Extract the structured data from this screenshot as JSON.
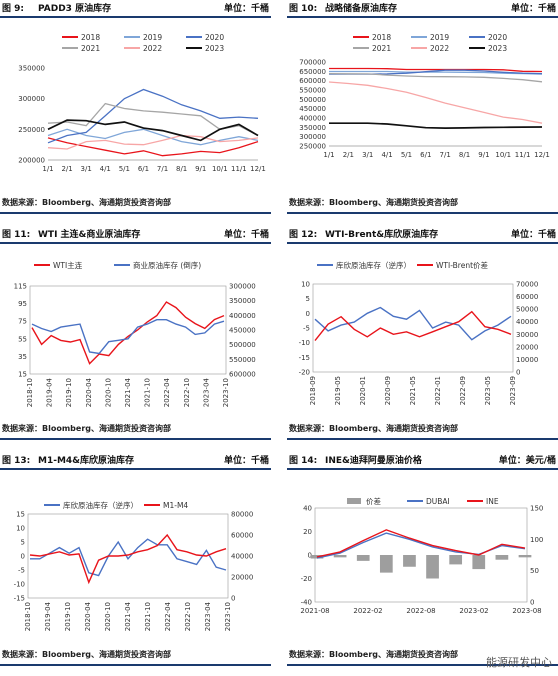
{
  "source_text": "数据来源：Bloomberg、海通期货投资咨询部",
  "watermark": "能源研发中心",
  "panels": [
    {
      "fig": "图 9:",
      "title": "PADD3 原油库存",
      "unit": "单位：千桶"
    },
    {
      "fig": "图 10:",
      "title": "战略储备原油库存",
      "unit": "单位：千桶"
    },
    {
      "fig": "图 11:",
      "title": "WTI 主连&商业原油库存",
      "unit": "单位：千桶"
    },
    {
      "fig": "图 12:",
      "title": "WTI-Brent&库欣原油库存",
      "unit": "单位：千桶"
    },
    {
      "fig": "图 13:",
      "title": "M1-M4&库欣原油库存",
      "unit": "单位：千桶"
    },
    {
      "fig": "图 14:",
      "title": "INE&迪拜阿曼原油价格",
      "unit": "单位：美元/桶"
    }
  ],
  "chart_data": [
    {
      "type": "line",
      "x": [
        "1/1",
        "2/1",
        "3/1",
        "4/1",
        "5/1",
        "6/1",
        "7/1",
        "8/1",
        "9/1",
        "10/1",
        "11/1",
        "12/1"
      ],
      "ylim": [
        200000,
        350000
      ],
      "yticks": [
        "350000",
        "300000",
        "250000",
        "200000"
      ],
      "series": [
        {
          "name": "2018",
          "color": "#e8141b",
          "values": [
            236000,
            228000,
            222000,
            216000,
            210000,
            215000,
            207000,
            210000,
            214000,
            212000,
            220000,
            230000
          ]
        },
        {
          "name": "2019",
          "color": "#7fa6d8",
          "values": [
            240000,
            250000,
            240000,
            235000,
            245000,
            250000,
            240000,
            230000,
            225000,
            232000,
            238000,
            232000
          ]
        },
        {
          "name": "2020",
          "color": "#4a72c4",
          "values": [
            228000,
            240000,
            245000,
            272000,
            300000,
            315000,
            304000,
            290000,
            280000,
            268000,
            270000,
            268000
          ]
        },
        {
          "name": "2021",
          "color": "#a6a6a6",
          "values": [
            260000,
            262000,
            256000,
            292000,
            284000,
            280000,
            278000,
            275000,
            272000,
            250000,
            256000,
            240000
          ]
        },
        {
          "name": "2022",
          "color": "#f7a6a6",
          "values": [
            220000,
            218000,
            230000,
            232000,
            226000,
            225000,
            232000,
            240000,
            238000,
            230000,
            232000,
            236000
          ]
        },
        {
          "name": "2023",
          "color": "#111111",
          "values": [
            250000,
            265000,
            264000,
            258000,
            262000,
            252000,
            248000,
            240000,
            232000,
            250000,
            258000,
            240000
          ]
        }
      ]
    },
    {
      "type": "line",
      "x": [
        "1/1",
        "2/1",
        "3/1",
        "4/1",
        "5/1",
        "6/1",
        "7/1",
        "8/1",
        "9/1",
        "10/1",
        "11/1",
        "12/1"
      ],
      "ylim": [
        250000,
        700000
      ],
      "yticks": [
        "700000",
        "650000",
        "600000",
        "550000",
        "500000",
        "450000",
        "400000",
        "350000",
        "300000",
        "250000"
      ],
      "series": [
        {
          "name": "2018",
          "color": "#e8141b",
          "values": [
            665000,
            665000,
            665000,
            664000,
            660000,
            660000,
            660000,
            660000,
            660000,
            658000,
            650000,
            649000
          ]
        },
        {
          "name": "2019",
          "color": "#7fa6d8",
          "values": [
            649000,
            649000,
            649000,
            649000,
            646000,
            646000,
            646000,
            645000,
            644000,
            640000,
            638000,
            635000
          ]
        },
        {
          "name": "2020",
          "color": "#4a72c4",
          "values": [
            635000,
            635000,
            635000,
            636000,
            640000,
            648000,
            656000,
            656000,
            652000,
            645000,
            640000,
            638000
          ]
        },
        {
          "name": "2021",
          "color": "#a6a6a6",
          "values": [
            638000,
            637000,
            636000,
            630000,
            625000,
            622000,
            621000,
            620000,
            618000,
            612000,
            605000,
            594000
          ]
        },
        {
          "name": "2022",
          "color": "#f7a6a6",
          "values": [
            593000,
            585000,
            575000,
            558000,
            538000,
            510000,
            480000,
            455000,
            430000,
            405000,
            392000,
            372000
          ]
        },
        {
          "name": "2023",
          "color": "#111111",
          "values": [
            372000,
            372000,
            372000,
            368000,
            358000,
            348000,
            346000,
            347000,
            349000,
            350000,
            351000,
            352000
          ]
        }
      ]
    },
    {
      "type": "line",
      "x": [
        "2018-10",
        "2019-01",
        "2019-04",
        "2019-07",
        "2019-10",
        "2020-01",
        "2020-04",
        "2020-07",
        "2020-10",
        "2021-01",
        "2021-04",
        "2021-07",
        "2021-10",
        "2022-01",
        "2022-04",
        "2022-07",
        "2022-10",
        "2023-01",
        "2023-04",
        "2023-07",
        "2023-10"
      ],
      "xticks": [
        "2018-10",
        "2019-04",
        "2019-10",
        "2020-04",
        "2020-10",
        "2021-04",
        "2021-10",
        "2022-04",
        "2022-10",
        "2023-04",
        "2023-10"
      ],
      "ylim_left": [
        15,
        125
      ],
      "yticks_left": [
        "115",
        "95",
        "75",
        "55",
        "35",
        "15"
      ],
      "yticks_right": [
        "300000",
        "350000",
        "400000",
        "450000",
        "500000",
        "550000",
        "600000"
      ],
      "series": [
        {
          "name": "WTI主连",
          "color": "#e8141b",
          "axis": "left",
          "values": [
            73,
            52,
            63,
            57,
            55,
            58,
            28,
            40,
            38,
            52,
            62,
            70,
            80,
            88,
            105,
            98,
            86,
            78,
            72,
            83,
            88
          ]
        },
        {
          "name": "商业原油库存 (倒序)",
          "color": "#4a72c4",
          "axis": "right",
          "values": [
            430000,
            445000,
            455000,
            440000,
            435000,
            430000,
            525000,
            530000,
            490000,
            485000,
            480000,
            440000,
            430000,
            415000,
            415000,
            430000,
            440000,
            465000,
            460000,
            430000,
            420000
          ]
        }
      ]
    },
    {
      "type": "line",
      "x": [
        "2018-09",
        "2019-01",
        "2019-05",
        "2019-09",
        "2020-01",
        "2020-05",
        "2020-09",
        "2021-01",
        "2021-05",
        "2021-09",
        "2022-01",
        "2022-05",
        "2022-09",
        "2023-01",
        "2023-05",
        "2023-09"
      ],
      "xticks": [
        "2018-09",
        "2019-05",
        "2020-01",
        "2020-09",
        "2021-05",
        "2022-01",
        "2022-09",
        "2023-05",
        "2023-09"
      ],
      "ylim_left": [
        -20,
        10
      ],
      "yticks_left": [
        "10",
        "5",
        "0",
        "-5",
        "-10",
        "-15",
        "-20"
      ],
      "yticks_right": [
        "70000",
        "60000",
        "50000",
        "40000",
        "30000",
        "20000",
        "10000",
        "0"
      ],
      "series": [
        {
          "name": "库欣原油库存（逆序）",
          "color": "#4a72c4",
          "axis": "left",
          "values": [
            -2,
            -6,
            -4,
            -3,
            0,
            2,
            -1,
            -2,
            1,
            -5,
            -3,
            -4,
            -9,
            -6,
            -4,
            -1
          ]
        },
        {
          "name": "WTI-Brent价差",
          "color": "#e8141b",
          "axis": "right",
          "values": [
            25000,
            38000,
            44000,
            34000,
            28000,
            35000,
            30000,
            32000,
            28000,
            32000,
            36000,
            40000,
            48000,
            36000,
            34000,
            30000
          ]
        }
      ]
    },
    {
      "type": "line",
      "x": [
        "2018-10",
        "2019-01",
        "2019-04",
        "2019-07",
        "2019-10",
        "2020-01",
        "2020-04",
        "2020-07",
        "2020-10",
        "2021-01",
        "2021-04",
        "2021-07",
        "2021-10",
        "2022-01",
        "2022-04",
        "2022-07",
        "2022-10",
        "2023-01",
        "2023-04",
        "2023-07",
        "2023-10"
      ],
      "xticks": [
        "2018-10",
        "2019-04",
        "2019-10",
        "2020-04",
        "2020-10",
        "2021-04",
        "2021-10",
        "2022-04",
        "2022-10",
        "2023-04",
        "2023-10"
      ],
      "ylim_left": [
        -15,
        15
      ],
      "yticks_left": [
        "15",
        "10",
        "5",
        "0",
        "-5",
        "-10",
        "-15"
      ],
      "yticks_right": [
        "80000",
        "60000",
        "40000",
        "20000",
        "0"
      ],
      "series": [
        {
          "name": "库欣原油库存（逆序）",
          "color": "#4a72c4",
          "axis": "left",
          "values": [
            -1,
            -1,
            1,
            3,
            1,
            3,
            -6,
            -7,
            0,
            5,
            -1,
            3,
            6,
            4,
            4,
            -1,
            -2,
            -3,
            2,
            -4,
            -5
          ]
        },
        {
          "name": "M1-M4",
          "color": "#e8141b",
          "axis": "right",
          "values": [
            41000,
            40000,
            42000,
            44000,
            41000,
            42000,
            15000,
            36000,
            40000,
            40000,
            41000,
            44000,
            46000,
            50000,
            60000,
            46000,
            44000,
            41000,
            40000,
            44000,
            47000
          ]
        }
      ]
    },
    {
      "type": "line",
      "x": [
        "2021-08",
        "2021-11",
        "2022-02",
        "2022-05",
        "2022-08",
        "2022-11",
        "2023-02",
        "2023-05",
        "2023-08",
        "2023-11"
      ],
      "xticks": [
        "2021-08",
        "2022-02",
        "2022-08",
        "2023-02",
        "2023-08"
      ],
      "ylim_left": [
        -40,
        40
      ],
      "yticks_left": [
        "40",
        "20",
        "0",
        "-20",
        "-40"
      ],
      "yticks_right": [
        "150",
        "100",
        "50",
        "0"
      ],
      "series": [
        {
          "name": "价差",
          "color": "#9e9e9e",
          "type": "bar",
          "axis": "left",
          "values": [
            -3,
            -2,
            -5,
            -15,
            -10,
            -20,
            -8,
            -12,
            -4,
            -2
          ]
        },
        {
          "name": "DUBAI",
          "color": "#4a72c4",
          "axis": "right",
          "values": [
            70,
            78,
            95,
            110,
            100,
            88,
            80,
            76,
            90,
            85
          ]
        },
        {
          "name": "INE",
          "color": "#e8141b",
          "axis": "right",
          "values": [
            72,
            80,
            98,
            115,
            102,
            90,
            82,
            75,
            92,
            86
          ]
        }
      ]
    }
  ]
}
